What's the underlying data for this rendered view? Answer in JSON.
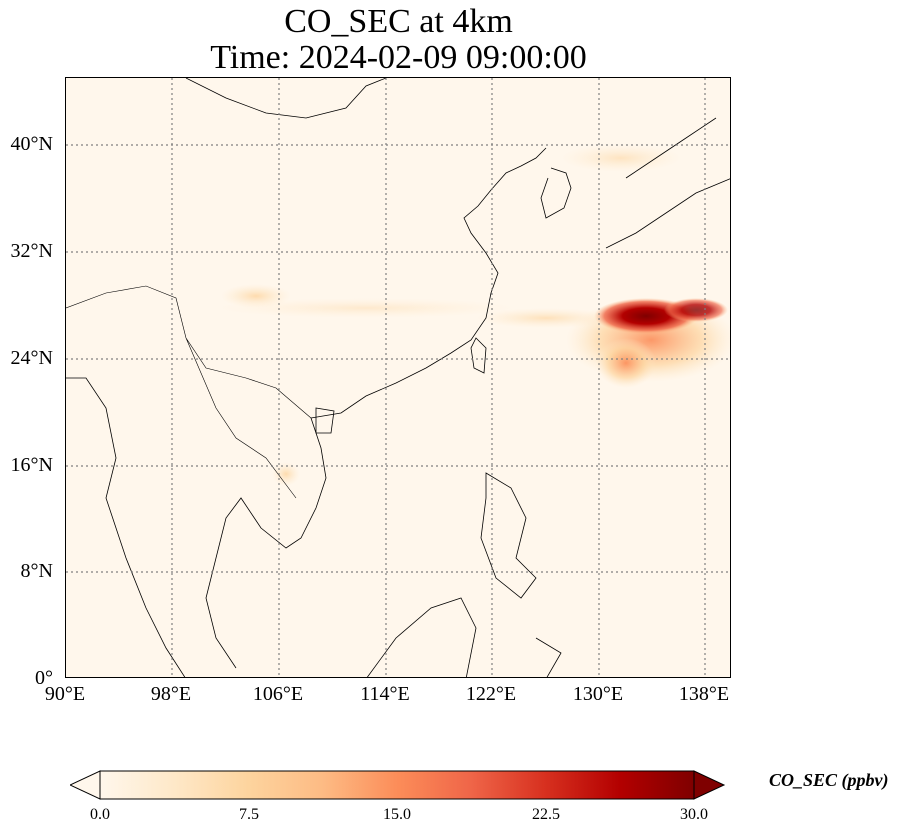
{
  "title": {
    "line1": "CO_SEC at 4km",
    "line2": "Time: 2024-02-09 09:00:00"
  },
  "map": {
    "extent": {
      "lon": [
        90,
        140
      ],
      "lat": [
        0,
        45
      ]
    },
    "lat_ticks": [
      "40°N",
      "32°N",
      "24°N",
      "16°N",
      "8°N",
      "0°"
    ],
    "lon_ticks": [
      "90°E",
      "98°E",
      "106°E",
      "114°E",
      "122°E",
      "130°E",
      "138°E"
    ],
    "gridlines": "dotted",
    "plume_max_region": "east of Taiwan / south of Japan (~130–140°E, 25–29°N)"
  },
  "colorbar": {
    "label": "CO_SEC (ppbv)",
    "ticks": [
      "0.0",
      "7.5",
      "15.0",
      "22.5",
      "30.0"
    ],
    "range": [
      0,
      30
    ],
    "colormap": "OrRd",
    "colors": [
      "#fff7ec",
      "#fee8c8",
      "#fdd49e",
      "#fdbb84",
      "#fc8d59",
      "#ef6548",
      "#d7301f",
      "#b30000",
      "#7f0000"
    ],
    "extend": "both"
  }
}
